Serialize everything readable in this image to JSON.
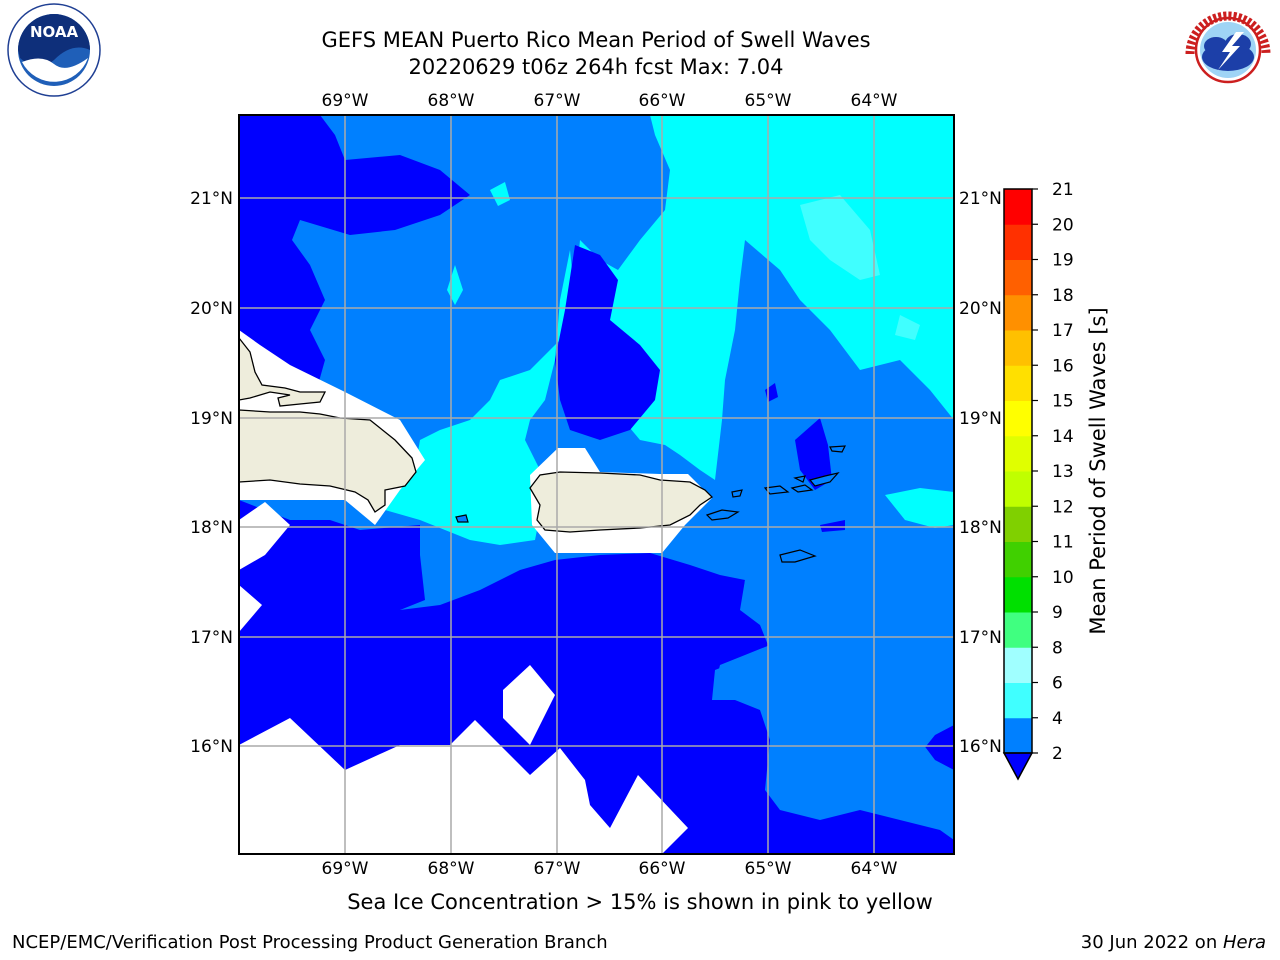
{
  "title": {
    "line1": "GEFS MEAN Puerto Rico Mean Period of Swell Waves",
    "line2": "20220629 t06z 264h fcst   Max: 7.04"
  },
  "map": {
    "lon_labels": [
      "69°W",
      "68°W",
      "67°W",
      "66°W",
      "65°W",
      "64°W"
    ],
    "lat_labels": [
      "21°N",
      "20°N",
      "19°N",
      "18°N",
      "17°N",
      "16°N"
    ],
    "lon_range": [
      -70,
      -63.25
    ],
    "lat_range": [
      15,
      21.75
    ],
    "grid": true,
    "land_color": "#eeeddc",
    "no_data_color": "#ffffff"
  },
  "colorbar": {
    "label": "Mean Period of Swell Waves [s]",
    "ticks": [
      "2",
      "4",
      "6",
      "8",
      "9",
      "10",
      "11",
      "12",
      "13",
      "14",
      "15",
      "16",
      "17",
      "18",
      "19",
      "20",
      "21"
    ],
    "under_color": "#0000ff",
    "colors": [
      "#0080ff",
      "#00ffff",
      "#40ffff",
      "#a0ffff",
      "#40ff80",
      "#00e000",
      "#40d000",
      "#80d000",
      "#c0ff00",
      "#e0ff00",
      "#ffff00",
      "#ffe000",
      "#ffc000",
      "#ff9000",
      "#ff6000",
      "#ff3000",
      "#ff0000"
    ]
  },
  "note": "Sea Ice Concentration > 15% is shown in pink to yellow",
  "footer": {
    "left": "NCEP/EMC/Verification Post Processing Product Generation Branch",
    "right_date": "30 Jun 2022 on ",
    "right_host": "Hera"
  },
  "logos": {
    "noaa_text": "NOAA",
    "nws_text": "NATIONAL WEATHER SERVICE"
  }
}
